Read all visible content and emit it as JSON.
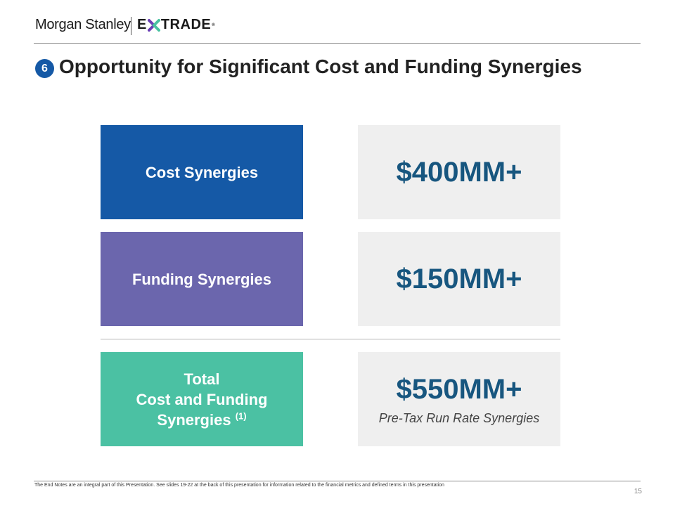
{
  "header": {
    "brand_primary": "Morgan Stanley",
    "brand_secondary": "E*TRADE",
    "brand_secondary_left": "E",
    "brand_secondary_right": "TRADE",
    "trademark": "®"
  },
  "slide": {
    "badge_number": "6",
    "title": "Opportunity for Significant Cost and Funding Synergies"
  },
  "rows": [
    {
      "label": "Cost Synergies",
      "value": "$400MM+"
    },
    {
      "label": "Funding Synergies",
      "value": "$150MM+"
    },
    {
      "label_line1": "Total",
      "label_line2": "Cost and Funding",
      "label_line3": "Synergies",
      "label_footnote_ref": "(1)",
      "value": "$550MM+",
      "value_caption": "Pre-Tax Run Rate Synergies"
    }
  ],
  "footer": {
    "note": "The End Notes are an integral part of this Presentation. See slides 19-22 at the back of this presentation for information related to the financial metrics and defined terms in this presentation",
    "page_number": "15"
  },
  "colors": {
    "cost": "#1559a6",
    "funding": "#6b66ad",
    "total": "#4bc1a3",
    "value_text": "#17567f",
    "value_bg": "#efefef",
    "etrade_x_purple": "#6a3fb5",
    "etrade_x_green": "#48c1a0"
  }
}
